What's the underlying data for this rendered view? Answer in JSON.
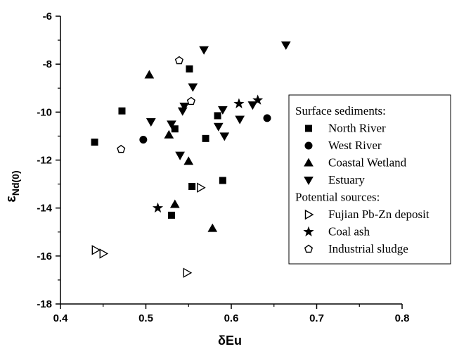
{
  "chart_data": {
    "type": "scatter",
    "xlabel": "δEu",
    "ylabel": {
      "base": "ε",
      "sub": "Nd(0)"
    },
    "xlim": [
      0.4,
      0.8
    ],
    "ylim": [
      -18,
      -6
    ],
    "xticks": [
      0.4,
      0.5,
      0.6,
      0.7,
      0.8
    ],
    "xtick_labels": [
      "0.4",
      "0.5",
      "0.6",
      "0.7",
      "0.8"
    ],
    "yticks": [
      -18,
      -16,
      -14,
      -12,
      -10,
      -8,
      -6
    ],
    "ytick_labels": [
      "-18",
      "-16",
      "-14",
      "-12",
      "-10",
      "-8",
      "-6"
    ],
    "grid": false,
    "legend_position": "right",
    "series": [
      {
        "group": "Surface sediments:",
        "name": "North River",
        "marker": "square",
        "filled": true,
        "points": [
          [
            0.44,
            -11.25
          ],
          [
            0.472,
            -9.95
          ],
          [
            0.551,
            -8.2
          ],
          [
            0.534,
            -10.7
          ],
          [
            0.57,
            -11.1
          ],
          [
            0.584,
            -10.15
          ],
          [
            0.554,
            -13.1
          ],
          [
            0.59,
            -12.85
          ],
          [
            0.53,
            -14.3
          ]
        ]
      },
      {
        "group": "Surface sediments:",
        "name": "West River",
        "marker": "circle",
        "filled": true,
        "points": [
          [
            0.497,
            -11.15
          ],
          [
            0.642,
            -10.25
          ]
        ]
      },
      {
        "group": "Surface sediments:",
        "name": "Coastal Wetland",
        "marker": "triangle-up",
        "filled": true,
        "points": [
          [
            0.504,
            -8.45
          ],
          [
            0.527,
            -10.95
          ],
          [
            0.55,
            -12.05
          ],
          [
            0.534,
            -13.85
          ],
          [
            0.578,
            -14.85
          ]
        ]
      },
      {
        "group": "Surface sediments:",
        "name": "Estuary",
        "marker": "triangle-down",
        "filled": true,
        "points": [
          [
            0.568,
            -7.4
          ],
          [
            0.664,
            -7.2
          ],
          [
            0.555,
            -8.95
          ],
          [
            0.545,
            -9.75
          ],
          [
            0.543,
            -9.95
          ],
          [
            0.53,
            -10.5
          ],
          [
            0.506,
            -10.4
          ],
          [
            0.59,
            -9.9
          ],
          [
            0.585,
            -10.6
          ],
          [
            0.592,
            -11.0
          ],
          [
            0.61,
            -10.3
          ],
          [
            0.625,
            -9.7
          ],
          [
            0.54,
            -11.8
          ]
        ]
      },
      {
        "group": "Potential sources:",
        "name": "Fujian Pb-Zn deposit",
        "marker": "triangle-right",
        "filled": false,
        "points": [
          [
            0.441,
            -15.75
          ],
          [
            0.45,
            -15.9
          ],
          [
            0.564,
            -13.15
          ],
          [
            0.548,
            -16.7
          ]
        ]
      },
      {
        "group": "Potential sources:",
        "name": "Coal ash",
        "marker": "star",
        "filled": true,
        "points": [
          [
            0.514,
            -14.0
          ],
          [
            0.609,
            -9.65
          ],
          [
            0.631,
            -9.5
          ]
        ]
      },
      {
        "group": "Potential sources:",
        "name": "Industrial sludge",
        "marker": "pentagon",
        "filled": false,
        "points": [
          [
            0.471,
            -11.55
          ],
          [
            0.539,
            -7.85
          ],
          [
            0.553,
            -9.55
          ]
        ]
      }
    ]
  }
}
